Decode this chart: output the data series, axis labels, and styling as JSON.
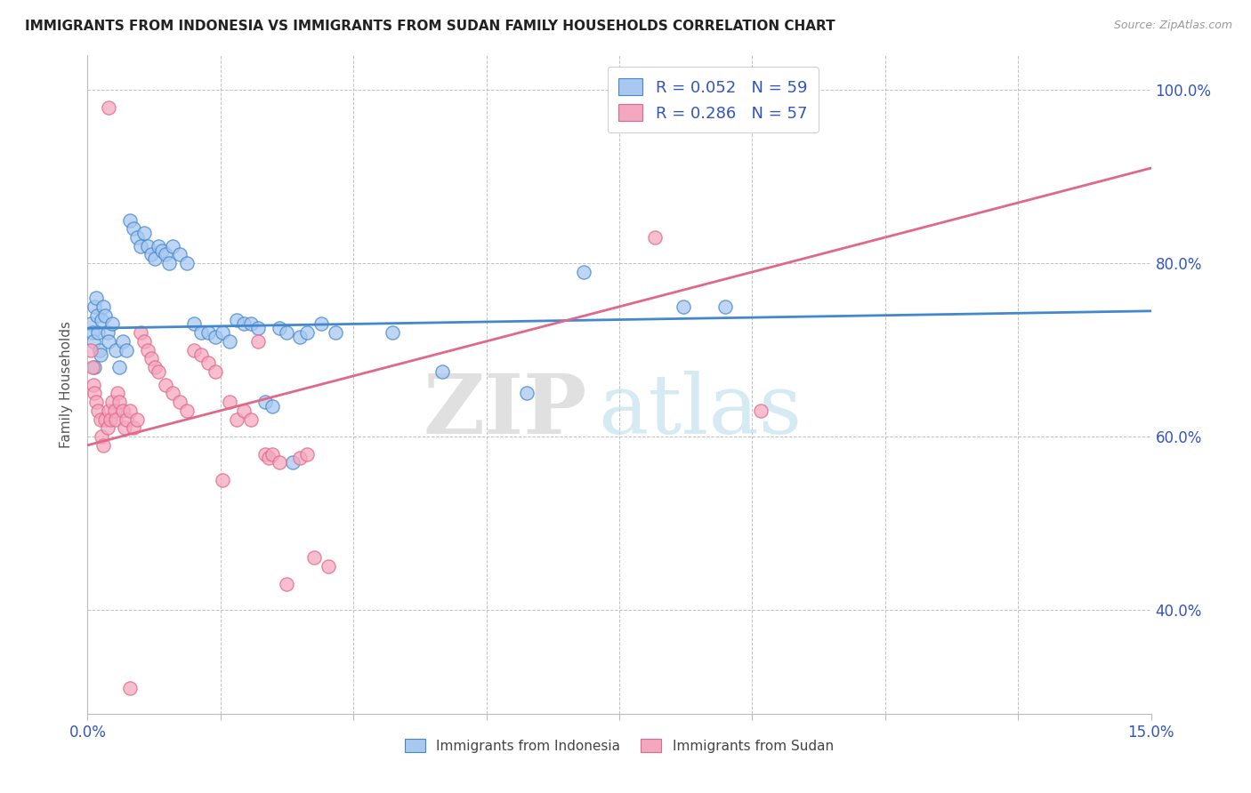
{
  "title": "IMMIGRANTS FROM INDONESIA VS IMMIGRANTS FROM SUDAN FAMILY HOUSEHOLDS CORRELATION CHART",
  "source": "Source: ZipAtlas.com",
  "ylabel": "Family Households",
  "legend_label_indonesia": "Immigrants from Indonesia",
  "legend_label_sudan": "Immigrants from Sudan",
  "color_indonesia": "#A8C8F0",
  "color_sudan": "#F4A8C0",
  "line_color_indonesia": "#4488CC",
  "line_color_sudan": "#E06888",
  "watermark_zip": "ZIP",
  "watermark_atlas": "atlas",
  "xlim": [
    0.0,
    15.0
  ],
  "ylim": [
    28.0,
    104.0
  ],
  "yticks": [
    40.0,
    60.0,
    80.0,
    100.0
  ],
  "xticks": [
    0.0,
    1.875,
    3.75,
    5.625,
    7.5,
    9.375,
    11.25,
    13.125,
    15.0
  ],
  "indonesia_R": 0.052,
  "indonesia_N": 59,
  "sudan_R": 0.286,
  "sudan_N": 57,
  "indonesia_line": {
    "x0": 0.0,
    "y0": 72.5,
    "x1": 15.0,
    "y1": 74.5
  },
  "sudan_line": {
    "x0": 0.0,
    "y0": 59.0,
    "x1": 15.0,
    "y1": 91.0
  },
  "indonesia_points": [
    [
      0.05,
      73.0
    ],
    [
      0.07,
      72.0
    ],
    [
      0.08,
      71.0
    ],
    [
      0.09,
      68.0
    ],
    [
      0.1,
      75.0
    ],
    [
      0.12,
      76.0
    ],
    [
      0.13,
      74.0
    ],
    [
      0.15,
      72.0
    ],
    [
      0.17,
      70.0
    ],
    [
      0.18,
      69.5
    ],
    [
      0.2,
      73.5
    ],
    [
      0.22,
      75.0
    ],
    [
      0.25,
      74.0
    ],
    [
      0.28,
      72.0
    ],
    [
      0.3,
      71.0
    ],
    [
      0.35,
      73.0
    ],
    [
      0.4,
      70.0
    ],
    [
      0.45,
      68.0
    ],
    [
      0.5,
      71.0
    ],
    [
      0.55,
      70.0
    ],
    [
      0.6,
      85.0
    ],
    [
      0.65,
      84.0
    ],
    [
      0.7,
      83.0
    ],
    [
      0.75,
      82.0
    ],
    [
      0.8,
      83.5
    ],
    [
      0.85,
      82.0
    ],
    [
      0.9,
      81.0
    ],
    [
      0.95,
      80.5
    ],
    [
      1.0,
      82.0
    ],
    [
      1.05,
      81.5
    ],
    [
      1.1,
      81.0
    ],
    [
      1.15,
      80.0
    ],
    [
      1.2,
      82.0
    ],
    [
      1.3,
      81.0
    ],
    [
      1.4,
      80.0
    ],
    [
      1.5,
      73.0
    ],
    [
      1.6,
      72.0
    ],
    [
      1.7,
      72.0
    ],
    [
      1.8,
      71.5
    ],
    [
      1.9,
      72.0
    ],
    [
      2.0,
      71.0
    ],
    [
      2.1,
      73.5
    ],
    [
      2.2,
      73.0
    ],
    [
      2.3,
      73.0
    ],
    [
      2.4,
      72.5
    ],
    [
      2.5,
      64.0
    ],
    [
      2.6,
      63.5
    ],
    [
      2.7,
      72.5
    ],
    [
      2.8,
      72.0
    ],
    [
      3.0,
      71.5
    ],
    [
      3.1,
      72.0
    ],
    [
      3.3,
      73.0
    ],
    [
      3.5,
      72.0
    ],
    [
      4.3,
      72.0
    ],
    [
      5.0,
      67.5
    ],
    [
      6.2,
      65.0
    ],
    [
      7.0,
      79.0
    ],
    [
      8.4,
      75.0
    ],
    [
      9.0,
      75.0
    ],
    [
      2.9,
      57.0
    ]
  ],
  "sudan_points": [
    [
      0.05,
      70.0
    ],
    [
      0.07,
      68.0
    ],
    [
      0.08,
      66.0
    ],
    [
      0.1,
      65.0
    ],
    [
      0.12,
      64.0
    ],
    [
      0.15,
      63.0
    ],
    [
      0.18,
      62.0
    ],
    [
      0.2,
      60.0
    ],
    [
      0.22,
      59.0
    ],
    [
      0.25,
      62.0
    ],
    [
      0.28,
      61.0
    ],
    [
      0.3,
      63.0
    ],
    [
      0.32,
      62.0
    ],
    [
      0.35,
      64.0
    ],
    [
      0.38,
      63.0
    ],
    [
      0.4,
      62.0
    ],
    [
      0.42,
      65.0
    ],
    [
      0.45,
      64.0
    ],
    [
      0.5,
      63.0
    ],
    [
      0.52,
      61.0
    ],
    [
      0.55,
      62.0
    ],
    [
      0.6,
      63.0
    ],
    [
      0.65,
      61.0
    ],
    [
      0.7,
      62.0
    ],
    [
      0.75,
      72.0
    ],
    [
      0.8,
      71.0
    ],
    [
      0.85,
      70.0
    ],
    [
      0.9,
      69.0
    ],
    [
      0.95,
      68.0
    ],
    [
      1.0,
      67.5
    ],
    [
      1.1,
      66.0
    ],
    [
      1.2,
      65.0
    ],
    [
      1.3,
      64.0
    ],
    [
      1.4,
      63.0
    ],
    [
      1.5,
      70.0
    ],
    [
      1.6,
      69.5
    ],
    [
      1.7,
      68.5
    ],
    [
      1.8,
      67.5
    ],
    [
      1.9,
      55.0
    ],
    [
      2.0,
      64.0
    ],
    [
      2.1,
      62.0
    ],
    [
      2.2,
      63.0
    ],
    [
      2.3,
      62.0
    ],
    [
      2.4,
      71.0
    ],
    [
      2.5,
      58.0
    ],
    [
      2.55,
      57.5
    ],
    [
      2.6,
      58.0
    ],
    [
      2.7,
      57.0
    ],
    [
      2.8,
      43.0
    ],
    [
      3.0,
      57.5
    ],
    [
      3.1,
      58.0
    ],
    [
      3.2,
      46.0
    ],
    [
      3.4,
      45.0
    ],
    [
      8.0,
      83.0
    ],
    [
      9.5,
      63.0
    ],
    [
      0.3,
      98.0
    ],
    [
      0.6,
      31.0
    ]
  ]
}
